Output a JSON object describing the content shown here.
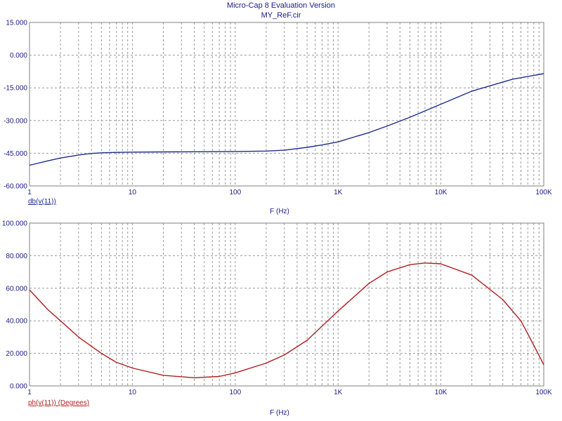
{
  "header": {
    "app_title": "Micro-Cap 8 Evaluation Version",
    "file_title": "MY_ReF.cir"
  },
  "colors": {
    "text": "#1a1a8c",
    "grid": "#9a9a9a",
    "trace_mag": "#1c2d8c",
    "trace_phase": "#b01e1e"
  },
  "chart_data": [
    {
      "type": "line",
      "xscale": "log",
      "xlim": [
        1,
        100000
      ],
      "ylim": [
        -60,
        15
      ],
      "xlabel": "F (Hz)",
      "trace_label": "db(v(11))",
      "x_ticks": [
        "1",
        "10",
        "100",
        "1K",
        "10K",
        "100K"
      ],
      "y_ticks": [
        "15.000",
        "0.000",
        "-15.000",
        "-30.000",
        "-45.000",
        "-60.000"
      ],
      "grid": true,
      "series": [
        {
          "name": "db(v(11))",
          "x": [
            1,
            1.5,
            2,
            3,
            4,
            5,
            7,
            10,
            20,
            50,
            100,
            200,
            300,
            500,
            700,
            1000,
            2000,
            3000,
            5000,
            10000,
            20000,
            50000,
            100000
          ],
          "y": [
            -50.5,
            -48.5,
            -47.2,
            -45.8,
            -45.1,
            -44.8,
            -44.6,
            -44.5,
            -44.4,
            -44.3,
            -44.2,
            -44.0,
            -43.6,
            -42.3,
            -41.2,
            -39.8,
            -35.5,
            -32.5,
            -28.5,
            -22.5,
            -16.5,
            -11.0,
            -8.5
          ]
        }
      ]
    },
    {
      "type": "line",
      "xscale": "log",
      "xlim": [
        1,
        100000
      ],
      "ylim": [
        0,
        100
      ],
      "xlabel": "F (Hz)",
      "trace_label": "ph(v(11)) (Degrees)",
      "x_ticks": [
        "1",
        "10",
        "100",
        "1K",
        "10K",
        "100K"
      ],
      "y_ticks": [
        "100.000",
        "80.000",
        "60.000",
        "40.000",
        "20.000",
        "0.000"
      ],
      "grid": true,
      "series": [
        {
          "name": "ph(v(11)) (Degrees)",
          "x": [
            1,
            1.5,
            2,
            3,
            5,
            7,
            10,
            20,
            40,
            70,
            100,
            200,
            300,
            500,
            1000,
            2000,
            3000,
            5000,
            7000,
            10000,
            20000,
            40000,
            60000,
            80000,
            100000
          ],
          "y": [
            59,
            47,
            40,
            30,
            20,
            14.5,
            11,
            6.5,
            5,
            5.8,
            8,
            14,
            19,
            28,
            46,
            63,
            70,
            74.5,
            75.5,
            75,
            68,
            53,
            40,
            25,
            13
          ]
        }
      ]
    }
  ]
}
